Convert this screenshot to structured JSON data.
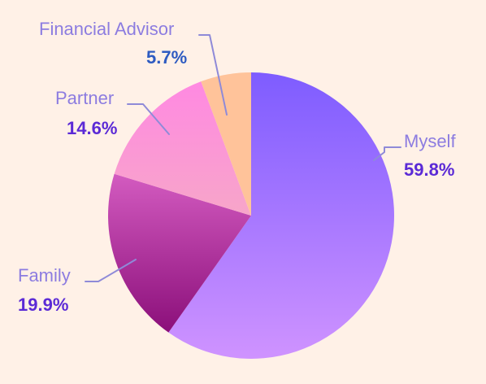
{
  "chart_data": {
    "type": "pie",
    "slices": [
      {
        "label": "Myself",
        "value": 59.8,
        "pct_label": "59.8%",
        "colors": [
          "#7e5cff",
          "#cf93ff"
        ],
        "label_color": "#8c7ce0",
        "value_color": "#5b2ad6"
      },
      {
        "label": "Family",
        "value": 19.9,
        "pct_label": "19.9%",
        "colors": [
          "#d35bc0",
          "#8b0f7a"
        ],
        "label_color": "#8c7ce0",
        "value_color": "#5b2ad6"
      },
      {
        "label": "Partner",
        "value": 14.6,
        "pct_label": "14.6%",
        "colors": [
          "#ff89e2",
          "#f7a6c9"
        ],
        "label_color": "#8c7ce0",
        "value_color": "#5b2ad6"
      },
      {
        "label": "Financial Advisor",
        "value": 5.7,
        "pct_label": "5.7%",
        "colors": [
          "#ffc39a",
          "#ffc39a"
        ],
        "label_color": "#8c7ce0",
        "value_color": "#2e5bc1"
      }
    ],
    "leader_color": "#8f8ad8",
    "background": "#fff1e7"
  }
}
